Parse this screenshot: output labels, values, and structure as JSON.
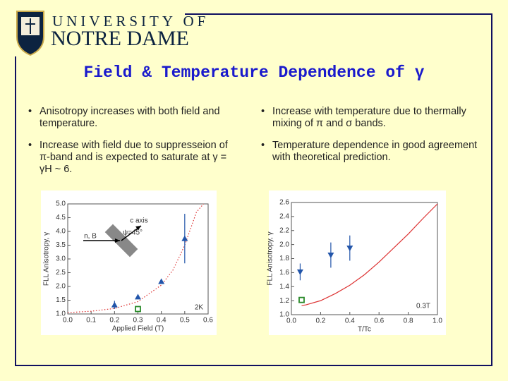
{
  "header": {
    "line1": "UNIVERSITY OF",
    "line2": "NOTRE DAME"
  },
  "title": "Field & Temperature Dependence of γ",
  "bullets": {
    "left": [
      "Anisotropy increases with both field and temperature.",
      "Increase with field due to suppresseion of π-band and is expected to saturate at γ = γH ~ 6."
    ],
    "right": [
      "Increase with temperature due to thermally mixing of π and σ bands.",
      "Temperature dependence in good agreement with theoretical prediction."
    ]
  },
  "chart_data": [
    {
      "type": "scatter",
      "x_label": "Applied Field (T)",
      "y_label": "FLL Anisotropy, γ",
      "annotations": [
        "n, B",
        "c axis",
        "ψ=45°",
        "2K"
      ],
      "xlim": [
        0,
        0.6
      ],
      "ylim": [
        1.0,
        5.0
      ],
      "xticks": [
        {
          "value": 0,
          "label": "0.0"
        },
        0.1,
        0.2,
        0.3,
        0.4,
        0.5,
        0.6
      ],
      "yticks": [
        {
          "value": 1,
          "label": "1.0"
        },
        1.5,
        {
          "value": 2,
          "label": "2.0"
        },
        2.5,
        {
          "value": 3,
          "label": "3.0"
        },
        3.5,
        {
          "value": 4,
          "label": "4.0"
        },
        4.5,
        {
          "value": 5,
          "label": "5.0"
        }
      ],
      "series": [
        {
          "marker": "dotted-line",
          "color": "#dd3333",
          "x": [
            0,
            0.1,
            0.2,
            0.3,
            0.4,
            0.45,
            0.5,
            0.55,
            0.58
          ],
          "values": [
            1.05,
            1.1,
            1.2,
            1.45,
            2.05,
            2.6,
            3.5,
            4.7,
            5.0
          ]
        },
        {
          "marker": "triangle-up",
          "color": "#2255aa",
          "x": [
            0.2,
            0.3,
            0.4,
            0.5
          ],
          "values": [
            1.33,
            1.62,
            2.18,
            3.74
          ],
          "errors": [
            0.15,
            0.05,
            0.05,
            0.9
          ]
        },
        {
          "marker": "square",
          "color": "#2a8a2a",
          "x": [
            0.3
          ],
          "values": [
            1.18
          ]
        }
      ]
    },
    {
      "type": "scatter",
      "x_label": "T/Tc",
      "y_label": "FLL Anisotropy, γ",
      "annotations": [
        "0.3T"
      ],
      "xlim": [
        0,
        1.0
      ],
      "ylim": [
        1.0,
        2.6
      ],
      "xticks": [
        {
          "value": 0,
          "label": "0.0"
        },
        0.2,
        0.4,
        0.6,
        0.8,
        {
          "value": 1,
          "label": "1.0"
        }
      ],
      "yticks": [
        {
          "value": 1,
          "label": "1.0"
        },
        1.2,
        1.4,
        1.6,
        1.8,
        {
          "value": 2,
          "label": "2.0"
        },
        2.2,
        2.4,
        2.6
      ],
      "series": [
        {
          "marker": "solid-line",
          "color": "#dd3333",
          "x": [
            0.07,
            0.1,
            0.2,
            0.3,
            0.4,
            0.5,
            0.6,
            0.7,
            0.8,
            0.9,
            1.0
          ],
          "values": [
            1.13,
            1.14,
            1.2,
            1.3,
            1.42,
            1.57,
            1.75,
            1.95,
            2.15,
            2.37,
            2.58
          ]
        },
        {
          "marker": "triangle-down",
          "color": "#2255aa",
          "x": [
            0.06,
            0.27,
            0.4
          ],
          "values": [
            1.61,
            1.85,
            1.95
          ],
          "errors": [
            0.12,
            0.18,
            0.18
          ]
        },
        {
          "marker": "square",
          "color": "#2a8a2a",
          "x": [
            0.07
          ],
          "values": [
            1.21
          ]
        }
      ]
    }
  ]
}
